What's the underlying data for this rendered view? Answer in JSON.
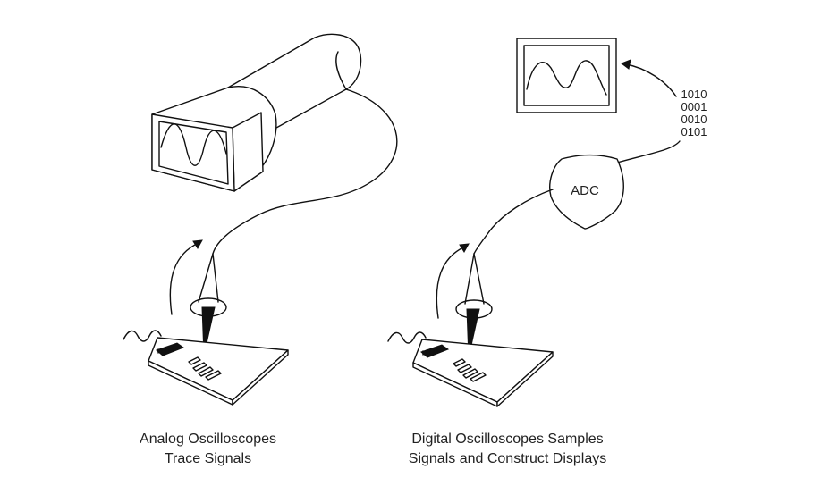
{
  "captions": {
    "analog": [
      "Analog Oscilloscopes",
      "Trace Signals"
    ],
    "digital": [
      "Digital Oscilloscopes Samples",
      "Signals and Construct Displays"
    ]
  },
  "adc_label": "ADC",
  "binary_lines": [
    "1010",
    "0001",
    "0010",
    "0101"
  ]
}
